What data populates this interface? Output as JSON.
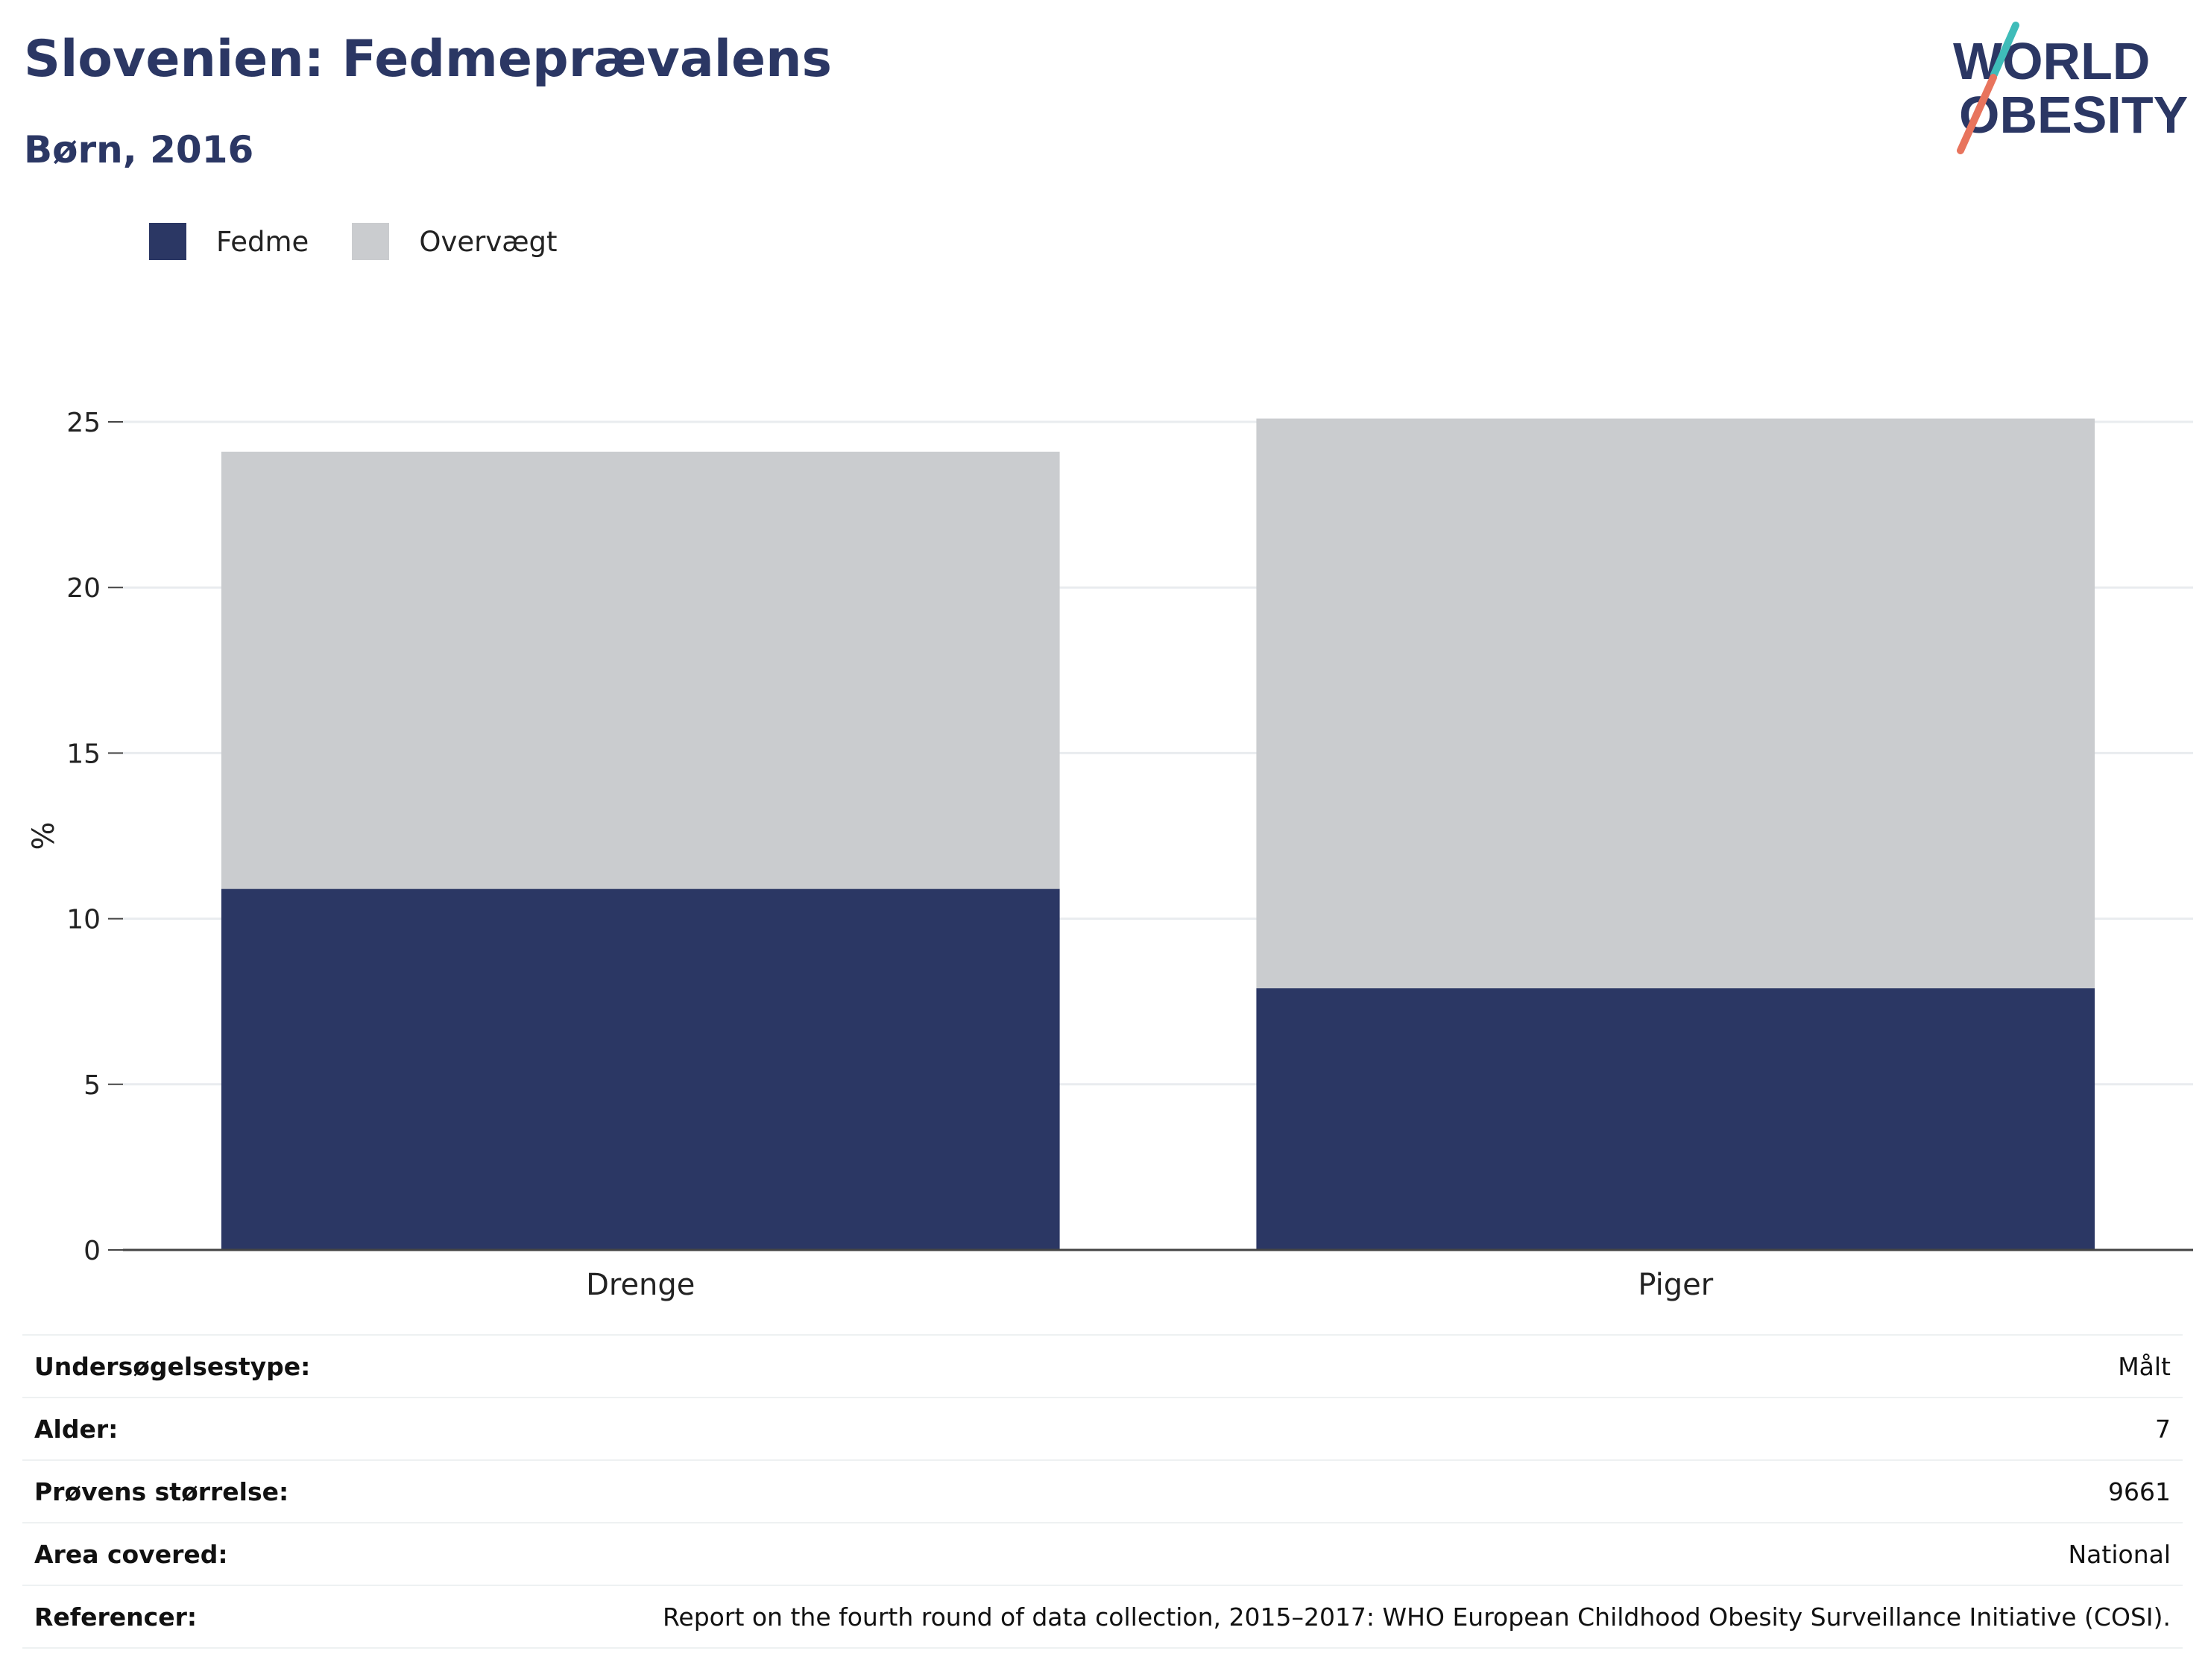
{
  "header": {
    "title": "Slovenien: Fedmeprævalens",
    "subtitle": "Børn, 2016"
  },
  "logo": {
    "line1": "WORLD",
    "line2": "OBESITY"
  },
  "legend": [
    {
      "label": "Fedme",
      "color": "#2b3764"
    },
    {
      "label": "Overvægt",
      "color": "#cacccf"
    }
  ],
  "chart_data": {
    "type": "bar",
    "stacked": true,
    "categories": [
      "Drenge",
      "Piger"
    ],
    "series": [
      {
        "name": "Fedme",
        "color": "#2b3764",
        "values": [
          10.9,
          7.9
        ]
      },
      {
        "name": "Overvægt",
        "color": "#cacccf",
        "values": [
          13.2,
          17.2
        ]
      }
    ],
    "ylabel": "%",
    "ylim": [
      0,
      25
    ],
    "yticks": [
      0,
      5,
      10,
      15,
      20,
      25
    ],
    "grid": true,
    "legend_position": "top-left"
  },
  "info_rows": [
    {
      "label": "Undersøgelsestype:",
      "value": "Målt"
    },
    {
      "label": "Alder:",
      "value": "7"
    },
    {
      "label": "Prøvens størrelse:",
      "value": "9661"
    },
    {
      "label": "Area covered:",
      "value": "National"
    },
    {
      "label": "Referencer:",
      "value": "Report on the fourth round of data collection, 2015–2017: WHO European Childhood Obesity Surveillance Initiative (COSI)."
    }
  ]
}
